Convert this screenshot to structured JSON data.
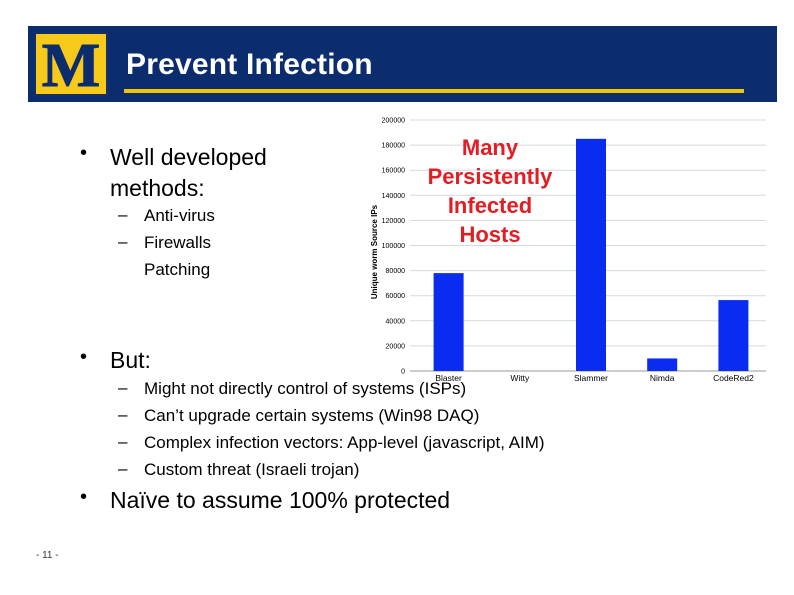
{
  "slide": {
    "title": "Prevent Infection",
    "page_number": "- 11 -",
    "logo_letter": "M"
  },
  "bullets": {
    "b1": "Well developed methods:",
    "b1_sub": [
      "Anti-virus",
      "Firewalls",
      "Patching"
    ],
    "b2": "But:",
    "b2_sub": [
      "Might not directly control of systems (ISPs)",
      "Can’t upgrade certain systems (Win98 DAQ)",
      "Complex infection vectors: App-level (javascript, AIM)",
      "Custom threat (Israeli trojan)"
    ],
    "b3": "Naïve to assume 100% protected"
  },
  "overlay_lines": [
    "Many",
    "Persistently",
    "Infected",
    "Hosts"
  ],
  "colors": {
    "header": "#0b2d6e",
    "accent": "#f3c400",
    "bar": "#0a2cf0",
    "overlay": "#e21d24"
  },
  "chart_data": {
    "type": "bar",
    "categories": [
      "Blaster",
      "Witty",
      "Slammer",
      "Nimda",
      "CodeRed2"
    ],
    "values": [
      78000,
      0,
      185000,
      10000,
      56500
    ],
    "ylabel": "Unique worm Source IPs",
    "ylim": [
      0,
      200000
    ],
    "yticks": [
      "0",
      "20000",
      "40000",
      "60000",
      "80000",
      "100000",
      "120000",
      "140000",
      "160000",
      "180000",
      "200000"
    ],
    "grid": true
  }
}
